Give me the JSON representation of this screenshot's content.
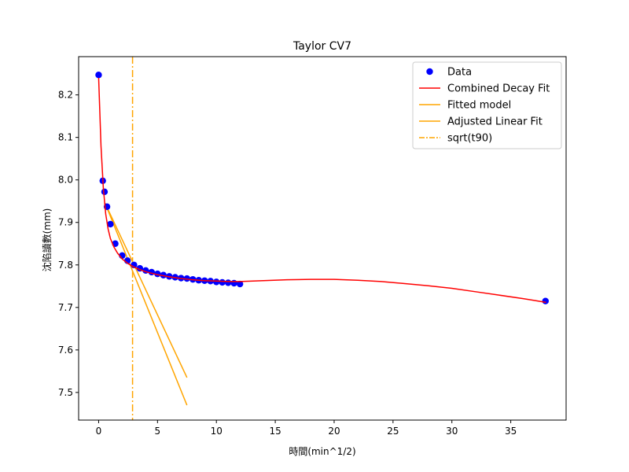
{
  "chart_data": {
    "type": "scatter",
    "title": "Taylor CV7",
    "xlabel": "時間(min^1/2)",
    "ylabel": "沈陷讀數(mm)",
    "xlim": [
      -1.7,
      39.7
    ],
    "ylim": [
      7.435,
      8.29
    ],
    "xticks": [
      0,
      5,
      10,
      15,
      20,
      25,
      30,
      35
    ],
    "yticks": [
      7.5,
      7.6,
      7.7,
      7.8,
      7.9,
      8.0,
      8.1,
      8.2
    ],
    "ytick_labels": [
      "7.5",
      "7.6",
      "7.7",
      "7.8",
      "7.9",
      "8.0",
      "8.1",
      "8.2"
    ],
    "grid": false,
    "legend_position": "top-right",
    "colors": {
      "data": "#0000ff",
      "combined_fit": "#ff0000",
      "fitted_model": "#ffa500",
      "adjusted_fit": "#ffa500",
      "sqrt_t90": "#ffa500"
    },
    "series": [
      {
        "name": "Data",
        "kind": "scatter",
        "x": [
          0,
          0.35,
          0.5,
          0.71,
          1.0,
          1.41,
          2.0,
          2.45,
          3.0,
          3.5,
          4.0,
          4.5,
          5.0,
          5.5,
          6.0,
          6.5,
          7.0,
          7.5,
          8.0,
          8.5,
          9.0,
          9.5,
          10.0,
          10.5,
          11.0,
          11.5,
          12.0,
          37.95
        ],
        "y": [
          8.247,
          7.998,
          7.972,
          7.937,
          7.896,
          7.85,
          7.822,
          7.81,
          7.8,
          7.792,
          7.787,
          7.783,
          7.779,
          7.776,
          7.773,
          7.771,
          7.769,
          7.768,
          7.766,
          7.764,
          7.763,
          7.762,
          7.76,
          7.759,
          7.758,
          7.757,
          7.755,
          7.715
        ]
      },
      {
        "name": "Combined Decay Fit",
        "kind": "line",
        "x": [
          0,
          0.2,
          0.4,
          0.6,
          0.8,
          1.0,
          1.3,
          1.6,
          2.0,
          2.5,
          3.0,
          3.5,
          4.0,
          5.0,
          6.0,
          7.0,
          8.0,
          9.0,
          10.0,
          11.0,
          12.0,
          14.0,
          16.0,
          18.0,
          20.0,
          22.0,
          24.0,
          26.0,
          28.0,
          30.0,
          32.0,
          34.0,
          36.0,
          38.0
        ],
        "y": [
          8.24,
          8.08,
          7.98,
          7.92,
          7.885,
          7.862,
          7.842,
          7.828,
          7.814,
          7.803,
          7.795,
          7.789,
          7.784,
          7.777,
          7.772,
          7.768,
          7.765,
          7.763,
          7.762,
          7.761,
          7.761,
          7.763,
          7.765,
          7.766,
          7.766,
          7.764,
          7.761,
          7.756,
          7.751,
          7.745,
          7.737,
          7.729,
          7.721,
          7.712
        ]
      },
      {
        "name": "Fitted model",
        "kind": "line",
        "x": [
          0.55,
          7.5
        ],
        "y": [
          7.945,
          7.535
        ]
      },
      {
        "name": "Adjusted Linear Fit",
        "kind": "line",
        "x": [
          0.55,
          7.5
        ],
        "y": [
          7.945,
          7.47
        ]
      },
      {
        "name": "sqrt(t90)",
        "kind": "vline",
        "x": 2.88,
        "style": "dashdot"
      }
    ]
  }
}
